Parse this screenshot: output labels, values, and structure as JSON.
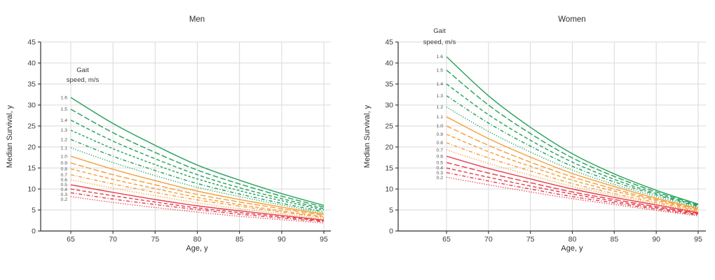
{
  "colors": {
    "green": "#29A35E",
    "orange": "#F3A13E",
    "red": "#E7404E",
    "grid": "#D9D9D9",
    "axis": "#2F2F2F",
    "text": "#333333",
    "curve_label": "#555555",
    "background": "#FFFFFF"
  },
  "chart_data": [
    {
      "type": "line",
      "title": "Men",
      "xlabel": "Age, y",
      "ylabel": "Median Survival, y",
      "legend_title_lines": [
        "Gait",
        "speed, m/s"
      ],
      "legend_position": "inside-upper-left",
      "units": {
        "x": "years of age",
        "y": "years",
        "series": "m/s"
      },
      "x": [
        65,
        70,
        75,
        80,
        85,
        90,
        95
      ],
      "x_ticks": [
        65,
        70,
        75,
        80,
        85,
        90,
        95
      ],
      "y_ticks": [
        0,
        5,
        10,
        15,
        20,
        25,
        30,
        35,
        40,
        45
      ],
      "xlim": [
        61.4,
        95.8
      ],
      "ylim": [
        0,
        45
      ],
      "grid": true,
      "series": [
        {
          "name": "1.6",
          "color_key": "green",
          "line_style": "solid",
          "values": [
            31.8,
            25.6,
            20.4,
            15.7,
            12.1,
            8.9,
            6.1
          ]
        },
        {
          "name": "1.5",
          "color_key": "green",
          "line_style": "dash-long",
          "values": [
            29.0,
            23.4,
            18.7,
            14.5,
            11.2,
            8.3,
            5.7
          ]
        },
        {
          "name": "1.4",
          "color_key": "green",
          "line_style": "dash",
          "values": [
            26.4,
            21.4,
            17.2,
            13.4,
            10.3,
            7.7,
            5.3
          ]
        },
        {
          "name": "1.3",
          "color_key": "green",
          "line_style": "dash-short",
          "values": [
            24.0,
            19.6,
            15.8,
            12.4,
            9.6,
            7.2,
            5.0
          ]
        },
        {
          "name": "1.2",
          "color_key": "green",
          "line_style": "dash-dot",
          "values": [
            21.8,
            17.8,
            14.4,
            11.3,
            8.8,
            6.6,
            4.6
          ]
        },
        {
          "name": "1.1",
          "color_key": "green",
          "line_style": "dot",
          "values": [
            19.8,
            16.3,
            13.2,
            10.4,
            8.2,
            6.2,
            4.3
          ]
        },
        {
          "name": "1.0",
          "color_key": "orange",
          "line_style": "solid",
          "values": [
            17.8,
            14.7,
            12.0,
            9.5,
            7.5,
            5.7,
            4.0
          ]
        },
        {
          "name": "0.9",
          "color_key": "orange",
          "line_style": "dash-long",
          "values": [
            16.2,
            13.4,
            11.0,
            8.7,
            6.9,
            5.3,
            3.7
          ]
        },
        {
          "name": "0.8",
          "color_key": "orange",
          "line_style": "dash",
          "values": [
            14.8,
            12.3,
            10.1,
            8.0,
            6.3,
            4.8,
            3.4
          ]
        },
        {
          "name": "0.7",
          "color_key": "orange",
          "line_style": "dash-dot",
          "values": [
            13.4,
            11.2,
            9.2,
            7.4,
            5.9,
            4.5,
            3.2
          ]
        },
        {
          "name": "0.6",
          "color_key": "orange",
          "line_style": "dot",
          "values": [
            12.2,
            10.2,
            8.4,
            6.7,
            5.3,
            4.1,
            2.9
          ]
        },
        {
          "name": "0.5",
          "color_key": "red",
          "line_style": "solid",
          "values": [
            11.0,
            9.2,
            7.5,
            6.0,
            4.8,
            3.7,
            2.6
          ]
        },
        {
          "name": "0.4",
          "color_key": "red",
          "line_style": "dash",
          "values": [
            10.0,
            8.4,
            6.9,
            5.5,
            4.4,
            3.4,
            2.4
          ]
        },
        {
          "name": "0.3",
          "color_key": "red",
          "line_style": "dash-dot",
          "values": [
            9.1,
            7.6,
            6.3,
            5.1,
            4.0,
            3.1,
            2.2
          ]
        },
        {
          "name": "0.2",
          "color_key": "red",
          "line_style": "dot",
          "values": [
            8.2,
            6.8,
            5.6,
            4.5,
            3.5,
            2.7,
            1.9
          ]
        }
      ]
    },
    {
      "type": "line",
      "title": "Women",
      "xlabel": "Age, y",
      "ylabel": "Median Survival, y",
      "legend_title_lines": [
        "Gait",
        "speed, m/s"
      ],
      "legend_position": "inside-top-left",
      "units": {
        "x": "years of age",
        "y": "years",
        "series": "m/s"
      },
      "x": [
        65,
        70,
        75,
        80,
        85,
        90,
        95
      ],
      "x_ticks": [
        65,
        70,
        75,
        80,
        85,
        90,
        95
      ],
      "y_ticks": [
        0,
        5,
        10,
        15,
        20,
        25,
        30,
        35,
        40,
        45
      ],
      "xlim": [
        59.2,
        95.9
      ],
      "ylim": [
        0,
        45
      ],
      "grid": true,
      "series": [
        {
          "name": "1.6",
          "color_key": "green",
          "line_style": "solid",
          "values": [
            41.5,
            32.2,
            24.7,
            18.4,
            13.6,
            9.7,
            6.4
          ]
        },
        {
          "name": "1.5",
          "color_key": "green",
          "line_style": "dash-long",
          "values": [
            38.3,
            30.0,
            23.2,
            17.4,
            13.0,
            9.3,
            6.2
          ]
        },
        {
          "name": "1.4",
          "color_key": "green",
          "line_style": "dash",
          "values": [
            35.0,
            27.7,
            21.6,
            16.4,
            12.3,
            8.9,
            6.0
          ]
        },
        {
          "name": "1.3",
          "color_key": "green",
          "line_style": "dash-dot",
          "values": [
            32.2,
            25.7,
            20.2,
            15.4,
            11.7,
            8.6,
            5.8
          ]
        },
        {
          "name": "1.2",
          "color_key": "green",
          "line_style": "dot",
          "values": [
            29.5,
            23.7,
            18.8,
            14.5,
            11.1,
            8.2,
            5.6
          ]
        },
        {
          "name": "1.1",
          "color_key": "orange",
          "line_style": "solid",
          "values": [
            27.2,
            22.0,
            17.6,
            13.7,
            10.6,
            7.8,
            5.4
          ]
        },
        {
          "name": "1.0",
          "color_key": "orange",
          "line_style": "dash-long",
          "values": [
            25.0,
            20.4,
            16.4,
            12.9,
            10.0,
            7.5,
            5.2
          ]
        },
        {
          "name": "0.9",
          "color_key": "orange",
          "line_style": "dash",
          "values": [
            23.0,
            18.9,
            15.4,
            12.1,
            9.5,
            7.2,
            5.0
          ]
        },
        {
          "name": "0.8",
          "color_key": "orange",
          "line_style": "dash-dot",
          "values": [
            21.0,
            17.4,
            14.3,
            11.3,
            8.9,
            6.8,
            4.8
          ]
        },
        {
          "name": "0.7",
          "color_key": "orange",
          "line_style": "dot",
          "values": [
            19.3,
            16.1,
            13.3,
            10.6,
            8.5,
            6.5,
            4.6
          ]
        },
        {
          "name": "0.6",
          "color_key": "red",
          "line_style": "solid",
          "values": [
            17.8,
            14.9,
            12.4,
            10.0,
            8.0,
            6.2,
            4.4
          ]
        },
        {
          "name": "0.5",
          "color_key": "red",
          "line_style": "dash-long",
          "values": [
            16.3,
            13.8,
            11.5,
            9.3,
            7.5,
            5.8,
            4.2
          ]
        },
        {
          "name": "0.4",
          "color_key": "red",
          "line_style": "dash",
          "values": [
            15.0,
            12.8,
            10.7,
            8.8,
            7.1,
            5.5,
            4.0
          ]
        },
        {
          "name": "0.3",
          "color_key": "red",
          "line_style": "dash-dot",
          "values": [
            13.9,
            11.9,
            10.0,
            8.2,
            6.7,
            5.2,
            3.8
          ]
        },
        {
          "name": "0.2",
          "color_key": "red",
          "line_style": "dot",
          "values": [
            12.8,
            11.0,
            9.3,
            7.7,
            6.3,
            4.9,
            3.6
          ]
        }
      ]
    }
  ]
}
